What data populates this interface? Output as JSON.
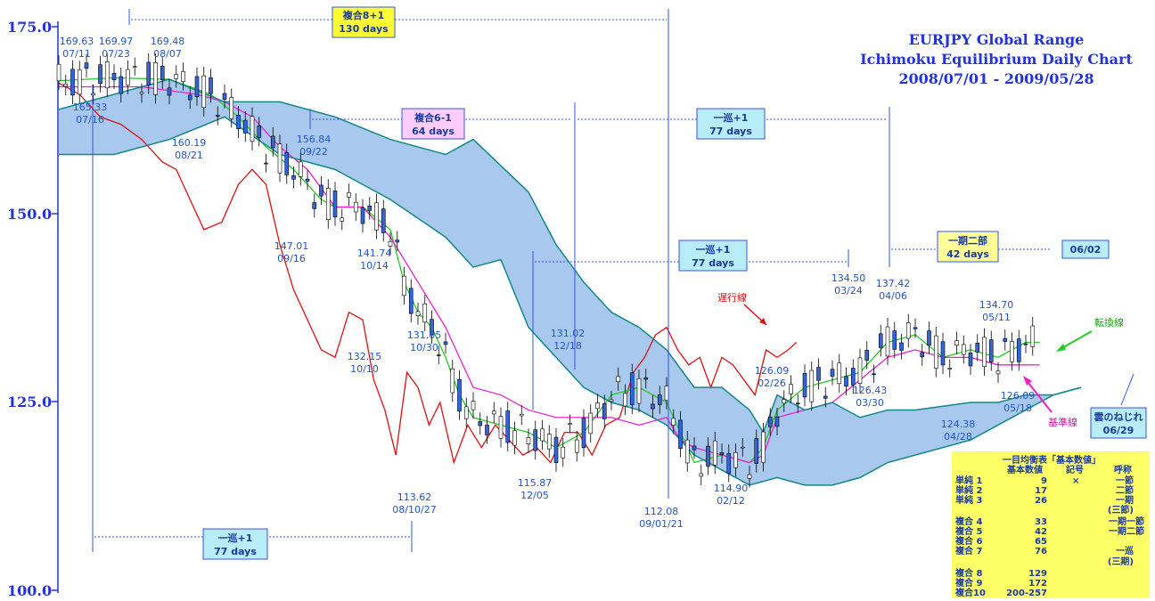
{
  "chart_data": {
    "type": "candlestick",
    "title": [
      "EURJPY Global Range",
      "Ichimoku Equilibrium Daily Chart",
      "2008/07/01 - 2009/05/28"
    ],
    "ylim": [
      100,
      175
    ],
    "yticks": [
      "100.0",
      "125.0",
      "150.0",
      "175.0"
    ],
    "key_prices": [
      {
        "value": "169.63",
        "date": "07/11"
      },
      {
        "value": "169.97",
        "date": "07/23"
      },
      {
        "value": "169.48",
        "date": "08/07"
      },
      {
        "value": "165.33",
        "date": "07/16"
      },
      {
        "value": "160.19",
        "date": "08/21"
      },
      {
        "value": "156.84",
        "date": "09/22"
      },
      {
        "value": "147.01",
        "date": "09/16"
      },
      {
        "value": "141.74",
        "date": "10/14"
      },
      {
        "value": "132.15",
        "date": "10/10"
      },
      {
        "value": "131.05",
        "date": "10/30"
      },
      {
        "value": "113.62",
        "date": "08/10/27"
      },
      {
        "value": "115.87",
        "date": "12/05"
      },
      {
        "value": "131.02",
        "date": "12/18"
      },
      {
        "value": "112.08",
        "date": "09/01/21"
      },
      {
        "value": "114.90",
        "date": "02/12"
      },
      {
        "value": "126.09",
        "date": "02/26"
      },
      {
        "value": "134.50",
        "date": "03/24"
      },
      {
        "value": "137.42",
        "date": "04/06"
      },
      {
        "value": "126.43",
        "date": "03/30"
      },
      {
        "value": "124.38",
        "date": "04/28"
      },
      {
        "value": "134.70",
        "date": "05/11"
      },
      {
        "value": "126.09",
        "date": "05/18"
      }
    ],
    "cycle_boxes": [
      {
        "line1": "複合8+1",
        "line2": "130 days",
        "style": "yellow"
      },
      {
        "line1": "複合6-1",
        "line2": "64 days",
        "style": "pink"
      },
      {
        "line1": "一巡+1",
        "line2": "77 days",
        "style": "cyan"
      },
      {
        "line1": "一巡+1",
        "line2": "77 days",
        "style": "cyan"
      },
      {
        "line1": "一期二部",
        "line2": "42 days",
        "style": "lightyellow"
      },
      {
        "line1": "06/02",
        "line2": "",
        "style": "cyan"
      },
      {
        "line1": "一巡+1",
        "line2": "77 days",
        "style": "cyan"
      },
      {
        "line1": "雲のねじれ",
        "line2": "06/29",
        "style": "cyan"
      }
    ],
    "annotations": {
      "chikou": "遅行線",
      "tenkan": "転換線",
      "kijun": "基準線"
    },
    "series": [
      {
        "name": "遅行線",
        "color": "#dd1111",
        "points": [
          [
            0,
            167.5
          ],
          [
            15,
            166
          ],
          [
            30,
            163
          ],
          [
            45,
            162
          ],
          [
            60,
            160
          ],
          [
            75,
            157
          ],
          [
            85,
            156
          ],
          [
            95,
            152
          ],
          [
            105,
            148
          ],
          [
            118,
            149
          ],
          [
            130,
            154
          ],
          [
            140,
            156
          ],
          [
            150,
            154
          ],
          [
            160,
            146
          ],
          [
            170,
            140
          ],
          [
            180,
            136
          ],
          [
            190,
            132
          ],
          [
            200,
            131
          ],
          [
            210,
            137
          ],
          [
            220,
            136
          ],
          [
            228,
            128
          ],
          [
            236,
            124
          ],
          [
            244,
            118
          ],
          [
            252,
            129
          ],
          [
            260,
            127
          ],
          [
            268,
            122
          ],
          [
            276,
            125
          ],
          [
            286,
            117
          ],
          [
            296,
            122
          ],
          [
            306,
            119
          ],
          [
            316,
            122
          ],
          [
            326,
            120
          ],
          [
            336,
            118
          ],
          [
            346,
            119
          ],
          [
            356,
            117
          ],
          [
            366,
            121
          ],
          [
            376,
            121
          ],
          [
            386,
            118
          ],
          [
            396,
            122
          ],
          [
            406,
            123
          ],
          [
            416,
            129
          ],
          [
            424,
            131
          ],
          [
            432,
            134
          ],
          [
            440,
            135
          ],
          [
            448,
            132
          ],
          [
            456,
            130
          ],
          [
            464,
            131
          ],
          [
            472,
            127
          ],
          [
            480,
            131
          ],
          [
            488,
            130
          ],
          [
            496,
            128
          ],
          [
            504,
            126
          ],
          [
            512,
            132
          ],
          [
            520,
            131
          ],
          [
            528,
            132
          ],
          [
            534,
            133
          ]
        ]
      },
      {
        "name": "転換線",
        "color": "#22cc22",
        "points": [
          [
            0,
            167.8
          ],
          [
            40,
            168.2
          ],
          [
            80,
            168
          ],
          [
            110,
            166
          ],
          [
            130,
            163
          ],
          [
            150,
            159
          ],
          [
            170,
            156
          ],
          [
            190,
            152
          ],
          [
            200,
            151
          ],
          [
            220,
            151
          ],
          [
            240,
            148
          ],
          [
            250,
            141
          ],
          [
            260,
            137
          ],
          [
            270,
            135
          ],
          [
            280,
            131
          ],
          [
            290,
            126
          ],
          [
            300,
            123
          ],
          [
            320,
            122
          ],
          [
            340,
            121
          ],
          [
            360,
            119
          ],
          [
            380,
            121
          ],
          [
            400,
            126
          ],
          [
            420,
            127
          ],
          [
            440,
            125
          ],
          [
            450,
            121
          ],
          [
            460,
            117
          ],
          [
            480,
            118
          ],
          [
            500,
            117
          ],
          [
            510,
            119
          ],
          [
            520,
            124
          ],
          [
            540,
            127
          ],
          [
            560,
            128
          ],
          [
            580,
            129
          ],
          [
            600,
            133
          ],
          [
            620,
            134
          ],
          [
            640,
            131
          ],
          [
            660,
            132
          ],
          [
            680,
            131
          ],
          [
            700,
            133
          ],
          [
            710,
            133
          ]
        ]
      },
      {
        "name": "基準線",
        "color": "#ee22cc",
        "points": [
          [
            0,
            167
          ],
          [
            60,
            167
          ],
          [
            100,
            166
          ],
          [
            120,
            165
          ],
          [
            140,
            163
          ],
          [
            160,
            159
          ],
          [
            180,
            156
          ],
          [
            200,
            151
          ],
          [
            220,
            151
          ],
          [
            240,
            147
          ],
          [
            260,
            141
          ],
          [
            280,
            135
          ],
          [
            300,
            127
          ],
          [
            320,
            126
          ],
          [
            340,
            124
          ],
          [
            360,
            123
          ],
          [
            380,
            123
          ],
          [
            400,
            123
          ],
          [
            420,
            122
          ],
          [
            440,
            123
          ],
          [
            450,
            120
          ],
          [
            460,
            119
          ],
          [
            480,
            118
          ],
          [
            500,
            117
          ],
          [
            510,
            118
          ],
          [
            520,
            123
          ],
          [
            540,
            124
          ],
          [
            560,
            125
          ],
          [
            580,
            128
          ],
          [
            600,
            131
          ],
          [
            620,
            132
          ],
          [
            640,
            131
          ],
          [
            660,
            131
          ],
          [
            680,
            130
          ],
          [
            700,
            130
          ],
          [
            710,
            130
          ]
        ]
      },
      {
        "name": "",
        "color": "#118888",
        "points": [
          [
            0,
            164
          ],
          [
            40,
            166
          ],
          [
            80,
            168
          ],
          [
            120,
            165
          ],
          [
            160,
            165
          ],
          [
            200,
            163
          ],
          [
            240,
            160
          ],
          [
            280,
            158
          ],
          [
            300,
            160
          ],
          [
            340,
            153
          ],
          [
            360,
            146
          ],
          [
            380,
            141
          ],
          [
            400,
            137
          ],
          [
            420,
            135
          ],
          [
            440,
            132
          ],
          [
            460,
            127
          ],
          [
            480,
            127
          ],
          [
            500,
            124
          ],
          [
            510,
            121
          ],
          [
            520,
            126
          ],
          [
            540,
            124
          ],
          [
            560,
            125
          ],
          [
            580,
            123
          ],
          [
            600,
            124
          ],
          [
            620,
            124
          ],
          [
            660,
            125
          ],
          [
            680,
            125
          ],
          [
            700,
            126
          ],
          [
            720,
            126
          ],
          [
            740,
            127
          ]
        ]
      },
      {
        "name": "",
        "color": "#118888",
        "points": [
          [
            0,
            158
          ],
          [
            40,
            158
          ],
          [
            80,
            160
          ],
          [
            120,
            163
          ],
          [
            160,
            158
          ],
          [
            200,
            156
          ],
          [
            240,
            152
          ],
          [
            280,
            147
          ],
          [
            300,
            143
          ],
          [
            320,
            144
          ],
          [
            340,
            135
          ],
          [
            360,
            131
          ],
          [
            380,
            127
          ],
          [
            400,
            125
          ],
          [
            420,
            124
          ],
          [
            440,
            122
          ],
          [
            460,
            118
          ],
          [
            480,
            116
          ],
          [
            500,
            114
          ],
          [
            520,
            115
          ],
          [
            540,
            114
          ],
          [
            560,
            114
          ],
          [
            580,
            115
          ],
          [
            600,
            117
          ],
          [
            620,
            118
          ],
          [
            660,
            120
          ],
          [
            680,
            122
          ],
          [
            700,
            124
          ],
          [
            720,
            126
          ],
          [
            740,
            127
          ]
        ]
      }
    ]
  }
}
